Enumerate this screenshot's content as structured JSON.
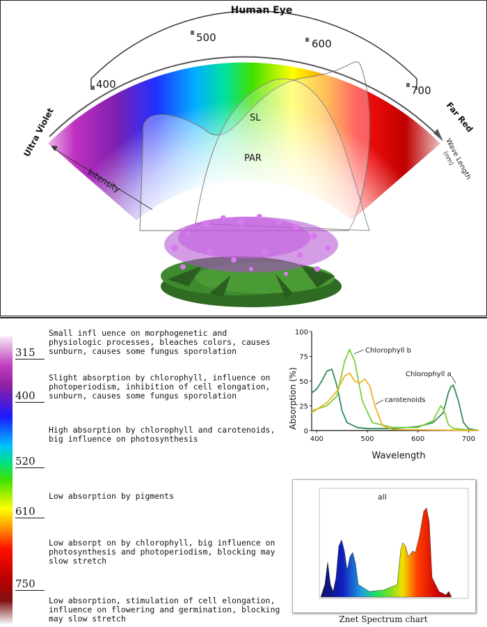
{
  "arc": {
    "title": "Human Eye",
    "ticks": [
      "400",
      "500",
      "600",
      "700"
    ],
    "left_label": "Ultra Violet",
    "right_label": "Far Red",
    "axis_x": "Wave Length",
    "axis_x_unit": "(nm)",
    "axis_y": "Intensity",
    "curve_sl": "SL",
    "curve_par": "PAR"
  },
  "bands": [
    {
      "nm": "315",
      "text": "Small infl uence on morphogenetic and physiologic processes, bleaches colors, causes sunburn, causes some fungus sporolation"
    },
    {
      "nm": "400",
      "text": "Slight absorption by chlorophyll, influence on photoperiodism, inhibition of cell elongation, sunburn, causes some fungus sporolation"
    },
    {
      "nm": "520",
      "text": "High absorption by chlorophyll and carotenoids, big influence on photosynthesis"
    },
    {
      "nm": "610",
      "text": "Low absorption by pigments"
    },
    {
      "nm": "750",
      "text": "Low absorpt on by chlorophyll, big influence on photosynthesis and photoperiodism, blocking may slow stretch"
    },
    {
      "nm": "",
      "text": "Low absorption, stimulation of cell elongation, influence on flowering and germination, blocking may slow stretch"
    }
  ],
  "chart_data": [
    {
      "type": "line",
      "xlabel": "Wavelength",
      "ylabel": "Absorption (%)",
      "xlim": [
        390,
        720
      ],
      "ylim": [
        0,
        100
      ],
      "xticks": [
        400,
        500,
        600,
        700
      ],
      "yticks": [
        0,
        25,
        50,
        75,
        100
      ],
      "series": [
        {
          "name": "Chlorophyll a",
          "color": "#2e8b57",
          "x": [
            390,
            400,
            410,
            420,
            430,
            440,
            450,
            460,
            480,
            500,
            550,
            600,
            630,
            650,
            660,
            665,
            670,
            680,
            690,
            700,
            720
          ],
          "y": [
            38,
            42,
            50,
            60,
            62,
            45,
            20,
            8,
            3,
            2,
            2,
            4,
            8,
            18,
            38,
            44,
            46,
            30,
            8,
            2,
            0
          ]
        },
        {
          "name": "Chlorophyll b",
          "color": "#7ccd3a",
          "x": [
            390,
            420,
            440,
            455,
            465,
            475,
            490,
            510,
            550,
            600,
            630,
            640,
            645,
            650,
            655,
            660,
            670,
            720
          ],
          "y": [
            20,
            25,
            35,
            70,
            82,
            70,
            30,
            8,
            3,
            3,
            10,
            20,
            25,
            22,
            15,
            6,
            2,
            0
          ]
        },
        {
          "name": "carotenoids",
          "color": "#f0b020",
          "x": [
            390,
            420,
            440,
            455,
            465,
            475,
            485,
            495,
            505,
            515,
            530,
            550,
            720
          ],
          "y": [
            18,
            28,
            40,
            55,
            58,
            50,
            48,
            52,
            45,
            25,
            5,
            1,
            0
          ]
        }
      ]
    },
    {
      "type": "area",
      "title": "all",
      "caption": "Znet Spectrum chart"
    }
  ]
}
